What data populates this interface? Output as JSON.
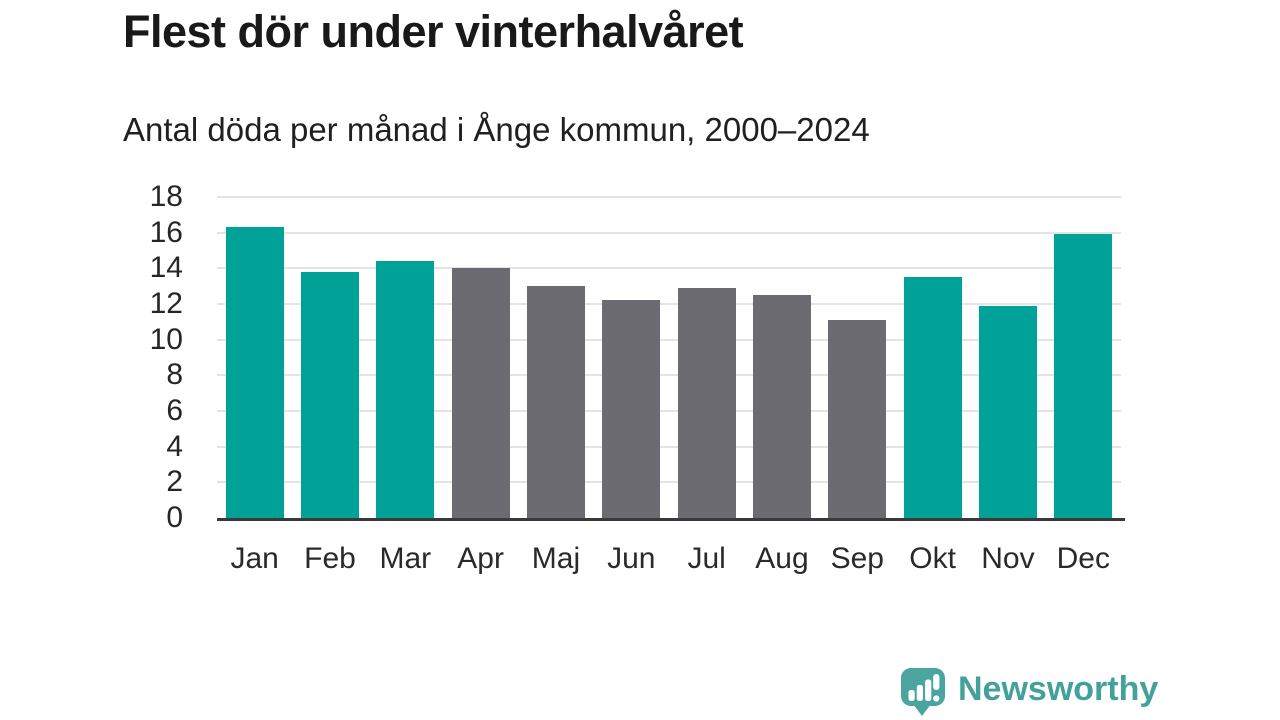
{
  "page": {
    "title": "Flest dör under vinterhalvåret",
    "subtitle": "Antal döda per månad i Ånge kommun, 2000–2024"
  },
  "chart_data": {
    "type": "bar",
    "title": "Flest dör under vinterhalvåret",
    "subtitle": "Antal döda per månad i Ånge kommun, 2000–2024",
    "categories": [
      "Jan",
      "Feb",
      "Mar",
      "Apr",
      "Maj",
      "Jun",
      "Jul",
      "Aug",
      "Sep",
      "Okt",
      "Nov",
      "Dec"
    ],
    "values": [
      16.3,
      13.8,
      14.4,
      14.0,
      13.0,
      12.2,
      12.9,
      12.5,
      11.1,
      13.5,
      11.9,
      15.9
    ],
    "bar_color_keys": [
      "teal",
      "teal",
      "teal",
      "gray",
      "gray",
      "gray",
      "gray",
      "gray",
      "gray",
      "teal",
      "teal",
      "teal"
    ],
    "colors": {
      "teal": "#00a298",
      "gray": "#6c6b72"
    },
    "highlight_meaning": "winter half-year months in teal, summer half-year months in gray",
    "xlabel": "",
    "ylabel": "",
    "ylim": [
      0,
      18
    ],
    "yticks": [
      0,
      2,
      4,
      6,
      8,
      10,
      12,
      14,
      16,
      18
    ],
    "grid": "horizontal",
    "legend": "none"
  },
  "branding": {
    "logo_text": "Newsworthy",
    "logo_icon": "chart-speech-bubble-icon",
    "accent_color": "#43a19b"
  }
}
